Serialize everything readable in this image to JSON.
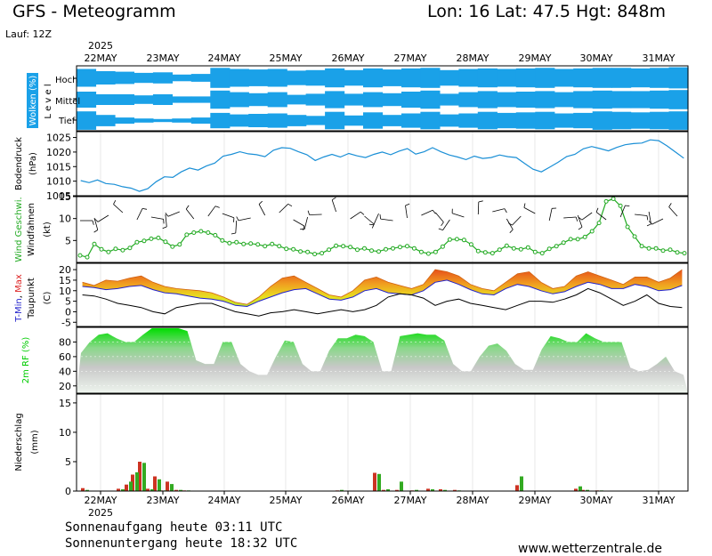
{
  "header": {
    "title": "GFS - Meteogramm",
    "location": "Lon: 16 Lat: 47.5 Hgt: 848m",
    "run": "Lauf: 12Z"
  },
  "footer": {
    "sunrise": "Sonnenaufgang heute 03:11 UTC",
    "sunset": "Sonnenuntergang heute 18:32 UTC",
    "website": "www.wetterzentrale.de"
  },
  "chart_data": [
    {
      "type": "heatmap",
      "id": "clouds",
      "ylabel": "Wolken (%)",
      "levels_label": "L e v e l",
      "levels": [
        "Hoch",
        "Mittel",
        "Tief"
      ],
      "year": "2025",
      "dates": [
        "22MAY",
        "23MAY",
        "24MAY",
        "25MAY",
        "26MAY",
        "27MAY",
        "28MAY",
        "29MAY",
        "30MAY",
        "31MAY"
      ],
      "tiefCover": [
        0.9,
        0.55,
        0.3,
        0.2,
        0.15,
        0.2,
        0.3,
        0.75,
        0.6,
        0.65,
        0.7,
        0.55,
        0.45,
        0.85,
        0.5,
        0.8,
        0.55,
        0.7,
        0.85,
        0.6,
        0.7,
        0.85,
        0.75,
        0.8,
        0.85,
        0.7,
        0.75,
        0.9,
        0.85,
        0.8,
        0.85,
        0.9
      ],
      "mittelCover": [
        0.75,
        0.5,
        0.5,
        0.4,
        0.5,
        0.3,
        0.3,
        0.85,
        0.7,
        0.6,
        0.7,
        0.45,
        0.55,
        0.8,
        0.55,
        0.7,
        0.6,
        0.75,
        0.85,
        0.55,
        0.7,
        0.8,
        0.7,
        0.75,
        0.8,
        0.7,
        0.8,
        0.85,
        0.8,
        0.8,
        0.85,
        0.9
      ],
      "hochCover": [
        0.8,
        0.6,
        0.55,
        0.45,
        0.5,
        0.3,
        0.35,
        0.9,
        0.8,
        0.75,
        0.8,
        0.65,
        0.7,
        0.85,
        0.7,
        0.85,
        0.75,
        0.85,
        0.9,
        0.7,
        0.8,
        0.85,
        0.8,
        0.85,
        0.9,
        0.8,
        0.85,
        0.9,
        0.9,
        0.85,
        0.9,
        0.95
      ]
    },
    {
      "type": "line",
      "id": "pressure",
      "ylabel": "Bodendruck",
      "unit": "(hPa)",
      "yticks": [
        1005,
        1010,
        1015,
        1020,
        1025
      ],
      "ylim": [
        1005,
        1027
      ],
      "values": [
        1010.2,
        1009.5,
        1010.4,
        1009.2,
        1008.9,
        1008.1,
        1007.6,
        1006.5,
        1007.4,
        1009.8,
        1011.5,
        1011.3,
        1013.2,
        1014.5,
        1013.8,
        1015.2,
        1016.2,
        1018.6,
        1019.2,
        1020.1,
        1019.4,
        1019.1,
        1018.4,
        1020.6,
        1021.5,
        1021.3,
        1020.1,
        1019.1,
        1017.1,
        1018.3,
        1019.2,
        1018.3,
        1019.5,
        1018.7,
        1018.1,
        1019.2,
        1020.0,
        1019.1,
        1020.3,
        1021.2,
        1019.3,
        1020.1,
        1021.5,
        1020.1,
        1019.0,
        1018.3,
        1017.4,
        1018.6,
        1017.8,
        1018.1,
        1019.0,
        1018.4,
        1018.1,
        1016.1,
        1014.1,
        1013.2,
        1014.8,
        1016.5,
        1018.4,
        1019.2,
        1021.1,
        1021.9,
        1021.2,
        1020.4,
        1021.6,
        1022.5,
        1022.9,
        1023.1,
        1024.2,
        1023.9,
        1022.1,
        1020.0,
        1017.9
      ]
    },
    {
      "type": "line",
      "id": "wind",
      "ylabel": "Wind Geschwi.",
      "ylabel2": "Windfahnen",
      "unit": "(kt)",
      "yticks": [
        5,
        10,
        15
      ],
      "ylim": [
        0,
        15
      ],
      "values": [
        1.6,
        1.2,
        4.2,
        3.0,
        2.4,
        3.1,
        2.8,
        3.3,
        4.6,
        4.9,
        5.4,
        5.6,
        4.7,
        3.6,
        4.1,
        6.3,
        6.8,
        7.1,
        6.8,
        6.2,
        5.0,
        4.4,
        4.6,
        4.2,
        4.3,
        4.1,
        3.7,
        4.2,
        3.7,
        3.1,
        3.0,
        2.5,
        2.4,
        1.9,
        2.1,
        2.9,
        3.8,
        3.7,
        3.5,
        2.9,
        3.2,
        2.7,
        2.5,
        3.0,
        3.2,
        3.5,
        3.7,
        3.2,
        2.4,
        2.0,
        2.4,
        3.6,
        5.2,
        5.3,
        5.1,
        4.1,
        2.6,
        2.3,
        2.1,
        2.9,
        3.8,
        3.2,
        3.0,
        3.4,
        2.4,
        2.1,
        3.1,
        3.7,
        4.5,
        5.3,
        5.3,
        5.8,
        7.1,
        9.0,
        13.9,
        14.5,
        12.9,
        8.1,
        5.9,
        3.7,
        3.2,
        3.2,
        2.7,
        2.9,
        2.3,
        2.1
      ]
    },
    {
      "type": "area",
      "id": "temperature",
      "ylabel": "T-Min, Max",
      "ylabel_parts": [
        "T-Min",
        ", ",
        "Max"
      ],
      "ylabel2": "Taupunkt",
      "unit": "(C)",
      "yticks": [
        -5,
        0,
        5,
        10,
        15,
        20
      ],
      "ylim": [
        -7,
        23
      ],
      "tmin": [
        12,
        11.5,
        10.5,
        11,
        12,
        12.5,
        10.5,
        9,
        8.5,
        7.5,
        6.5,
        6,
        5,
        3,
        2.5,
        5,
        7,
        9,
        10.5,
        11,
        8.5,
        6,
        5.5,
        7,
        10,
        11,
        9,
        8.5,
        8,
        10,
        14,
        15,
        13,
        10.5,
        8.5,
        8,
        11,
        13,
        12,
        10,
        8.5,
        9.5,
        12,
        14,
        13,
        11,
        11,
        13,
        12,
        10,
        10.5,
        12.5
      ],
      "tmax": [
        14,
        12.5,
        15,
        14.5,
        16,
        17,
        14,
        12,
        11,
        10.5,
        10,
        9,
        7,
        4.5,
        3.5,
        7,
        12,
        16,
        17,
        14,
        11,
        8,
        7,
        10,
        15,
        16.5,
        14,
        12.5,
        11,
        13,
        20,
        19,
        17,
        13,
        11,
        10,
        14,
        18,
        19,
        14,
        11,
        12,
        17,
        19,
        17,
        15,
        13,
        16.5,
        16.5,
        14,
        16,
        20
      ],
      "dewpoint": [
        8,
        7.5,
        6,
        4,
        3,
        2,
        0,
        -1,
        2,
        3,
        4,
        4,
        2,
        0,
        -1,
        -2,
        -0.5,
        0,
        1,
        0,
        -1,
        0,
        1,
        0,
        1,
        3,
        7,
        8.5,
        8,
        6.5,
        3,
        5,
        6,
        4,
        3,
        2,
        1,
        3,
        5,
        5,
        4.5,
        6,
        8,
        11,
        9,
        6,
        3,
        5,
        8,
        4,
        2.5,
        2
      ]
    },
    {
      "type": "area",
      "id": "humidity",
      "ylabel": "2m RF (%)",
      "yticks": [
        20,
        40,
        60,
        80
      ],
      "ylim": [
        10,
        100
      ],
      "values": [
        65,
        80,
        90,
        92,
        85,
        80,
        80,
        90,
        100,
        100,
        100,
        100,
        95,
        55,
        50,
        50,
        80,
        80,
        50,
        40,
        35,
        35,
        60,
        82,
        80,
        50,
        40,
        40,
        68,
        85,
        85,
        90,
        88,
        80,
        40,
        40,
        88,
        90,
        92,
        90,
        90,
        82,
        50,
        40,
        40,
        60,
        75,
        78,
        68,
        50,
        42,
        42,
        70,
        88,
        85,
        80,
        80,
        92,
        85,
        80,
        80,
        80,
        45,
        40,
        42,
        50,
        60,
        40,
        35
      ]
    },
    {
      "type": "bar",
      "id": "precipitation",
      "ylabel": "Niederschlag",
      "unit": "(mm)",
      "yticks": [
        0,
        5,
        10,
        15
      ],
      "ylim": [
        0,
        16.5
      ],
      "series": [
        {
          "color": "#cc3322",
          "values": [
            0.5,
            0.4,
            1.1,
            2.8,
            5.0,
            0.4,
            2.5,
            0.1,
            1.6,
            0.2,
            0.1,
            0.1,
            3.1,
            0.2,
            0.2,
            0.1,
            0.4,
            0.3,
            0.2,
            1.0,
            0.4,
            0.2,
            0.1
          ]
        },
        {
          "color": "#33aa22",
          "values": [
            0.2,
            0.3,
            1.6,
            3.2,
            4.8,
            0.3,
            2.0,
            0.1,
            1.2,
            0.2,
            0.1,
            0.2,
            2.9,
            0.3,
            1.6,
            0.2,
            0.3,
            0.2,
            0.1,
            2.5,
            0.8,
            0.2,
            0.1
          ]
        }
      ]
    }
  ],
  "colors": {
    "cloud": "#1aa1e8",
    "pressure": "#1a8fd6",
    "wind": "#22aa22",
    "tmin": "#2222cc",
    "tmax": "#dd2222",
    "humidity": "#00cc00"
  }
}
